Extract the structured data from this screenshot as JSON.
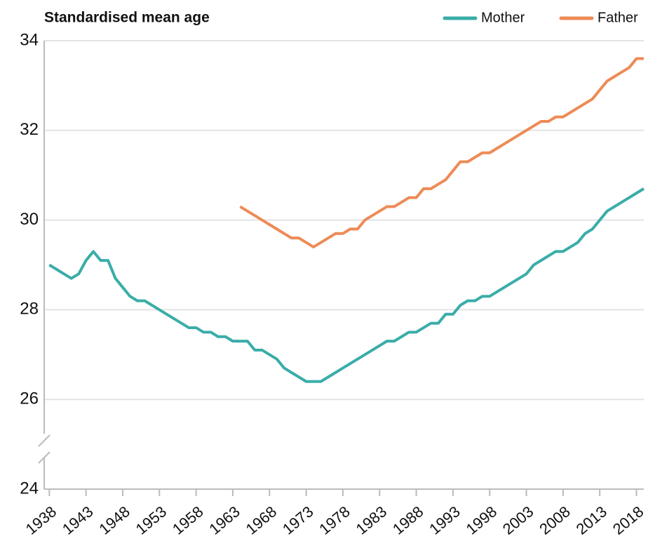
{
  "chart_data": {
    "type": "line",
    "title": "Standardised mean age",
    "x": [
      1938,
      1939,
      1940,
      1941,
      1942,
      1943,
      1944,
      1945,
      1946,
      1947,
      1948,
      1949,
      1950,
      1951,
      1952,
      1953,
      1954,
      1955,
      1956,
      1957,
      1958,
      1959,
      1960,
      1961,
      1962,
      1963,
      1964,
      1965,
      1966,
      1967,
      1968,
      1969,
      1970,
      1971,
      1972,
      1973,
      1974,
      1975,
      1976,
      1977,
      1978,
      1979,
      1980,
      1981,
      1982,
      1983,
      1984,
      1985,
      1986,
      1987,
      1988,
      1989,
      1990,
      1991,
      1992,
      1993,
      1994,
      1995,
      1996,
      1997,
      1998,
      1999,
      2000,
      2001,
      2002,
      2003,
      2004,
      2005,
      2006,
      2007,
      2008,
      2009,
      2010,
      2011,
      2012,
      2013,
      2014,
      2015,
      2016,
      2017,
      2018,
      2019
    ],
    "series": [
      {
        "name": "Mother",
        "color": "#3aada8",
        "values": [
          29.0,
          28.9,
          28.8,
          28.7,
          28.8,
          29.1,
          29.3,
          29.1,
          29.1,
          28.7,
          28.5,
          28.3,
          28.2,
          28.2,
          28.1,
          28.0,
          27.9,
          27.8,
          27.7,
          27.6,
          27.6,
          27.5,
          27.5,
          27.4,
          27.4,
          27.3,
          27.3,
          27.3,
          27.1,
          27.1,
          27.0,
          26.9,
          26.7,
          26.6,
          26.5,
          26.4,
          26.4,
          26.4,
          26.5,
          26.6,
          26.7,
          26.8,
          26.9,
          27.0,
          27.1,
          27.2,
          27.3,
          27.3,
          27.4,
          27.5,
          27.5,
          27.6,
          27.7,
          27.7,
          27.9,
          27.9,
          28.1,
          28.2,
          28.2,
          28.3,
          28.3,
          28.4,
          28.5,
          28.6,
          28.7,
          28.8,
          29.0,
          29.1,
          29.2,
          29.3,
          29.3,
          29.4,
          29.5,
          29.7,
          29.8,
          30.0,
          30.2,
          30.3,
          30.4,
          30.5,
          30.6,
          30.7
        ]
      },
      {
        "name": "Father",
        "color": "#ed8b57",
        "values": [
          null,
          null,
          null,
          null,
          null,
          null,
          null,
          null,
          null,
          null,
          null,
          null,
          null,
          null,
          null,
          null,
          null,
          null,
          null,
          null,
          null,
          null,
          null,
          null,
          null,
          null,
          30.3,
          30.2,
          30.1,
          30.0,
          29.9,
          29.8,
          29.7,
          29.6,
          29.6,
          29.5,
          29.4,
          29.5,
          29.6,
          29.7,
          29.7,
          29.8,
          29.8,
          30.0,
          30.1,
          30.2,
          30.3,
          30.3,
          30.4,
          30.5,
          30.5,
          30.7,
          30.7,
          30.8,
          30.9,
          31.1,
          31.3,
          31.3,
          31.4,
          31.5,
          31.5,
          31.6,
          31.7,
          31.8,
          31.9,
          32.0,
          32.1,
          32.2,
          32.2,
          32.3,
          32.3,
          32.4,
          32.5,
          32.6,
          32.7,
          32.9,
          33.1,
          33.2,
          33.3,
          33.4,
          33.6,
          33.6
        ]
      }
    ],
    "xlim": [
      1937.3,
      2019
    ],
    "xticks": [
      1938,
      1943,
      1948,
      1953,
      1958,
      1963,
      1968,
      1973,
      1978,
      1983,
      1988,
      1993,
      1998,
      2003,
      2008,
      2013,
      2018
    ],
    "ylim": [
      24,
      34
    ],
    "yticks": [
      24,
      26,
      28,
      30,
      32,
      34
    ],
    "grid": true,
    "legend": "top-right"
  }
}
